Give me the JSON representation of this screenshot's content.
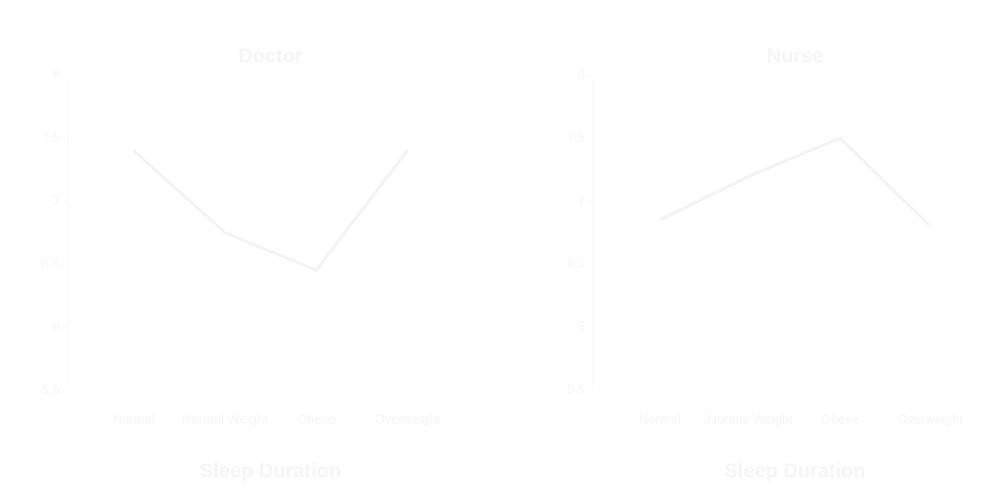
{
  "chart_data": [
    {
      "type": "line",
      "title": "Doctor",
      "x_label": "Sleep Duration",
      "categories": [
        "Normal",
        "Normal Weight",
        "Obese",
        "Overweight"
      ],
      "series": [
        {
          "name": "Doctor",
          "color": "#f3f3f3",
          "values": [
            7.4,
            6.75,
            6.45,
            7.4
          ]
        }
      ],
      "ylim": [
        5.5,
        8.0
      ],
      "yticks": [
        5.5,
        6.0,
        6.5,
        7.0,
        7.5,
        8.0
      ]
    },
    {
      "type": "line",
      "title": "Nurse",
      "x_label": "Sleep Duration",
      "categories": [
        "Normal",
        "Normal Weight",
        "Obese",
        "Overweight"
      ],
      "series": [
        {
          "name": "Nurse",
          "color": "#f3f3f3",
          "values": [
            6.85,
            7.2,
            7.5,
            6.8
          ]
        }
      ],
      "ylim": [
        5.5,
        8.0
      ],
      "yticks": [
        5.5,
        6.0,
        6.5,
        7.0,
        7.5,
        8.0
      ]
    }
  ]
}
